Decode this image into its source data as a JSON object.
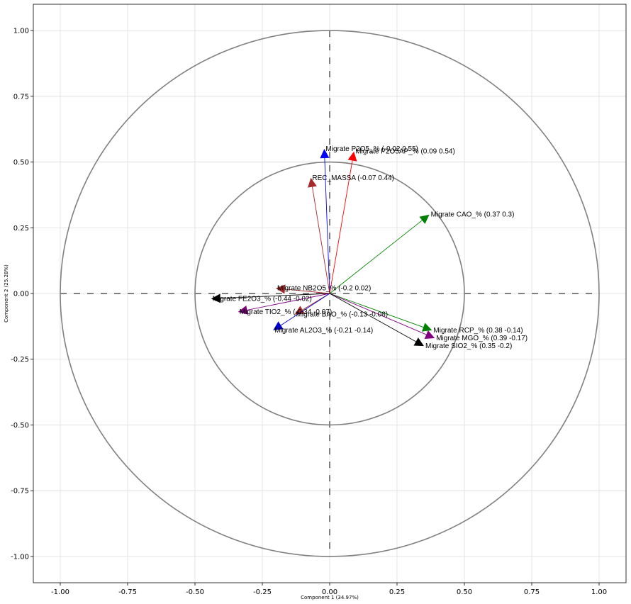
{
  "chart_data": {
    "type": "scatter",
    "subtype": "pca-correlation-circle",
    "title": "",
    "xlabel": "Component 1 (34.97%)",
    "ylabel": "Component 2 (25.28%)",
    "xlim": [
      -1.1,
      1.1
    ],
    "ylim": [
      -1.1,
      1.1
    ],
    "xticks": [
      "-1.00",
      "-0.75",
      "-0.50",
      "-0.25",
      "0.00",
      "0.25",
      "0.50",
      "0.75",
      "1.00"
    ],
    "yticks": [
      "-1.00",
      "-0.75",
      "-0.50",
      "-0.25",
      "0.00",
      "0.25",
      "0.50",
      "0.75",
      "1.00"
    ],
    "grid": true,
    "circles": [
      1.0,
      0.5
    ],
    "vectors": [
      {
        "name": "Migrate P2O5_% (-0.02 0.55)",
        "x": -0.02,
        "y": 0.55,
        "color": "#0000ff"
      },
      {
        "name": "Migrate P2O5AP_% (0.09 0.54)",
        "x": 0.09,
        "y": 0.54,
        "color": "#ff0000"
      },
      {
        "name": "REC_MASSA (-0.07 0.44)",
        "x": -0.07,
        "y": 0.44,
        "color": "#a52a2a"
      },
      {
        "name": "Migrate CAO_% (0.37 0.3)",
        "x": 0.37,
        "y": 0.3,
        "color": "#008000"
      },
      {
        "name": "Migrate NB2O5_% (-0.2 0.02)",
        "x": -0.2,
        "y": 0.02,
        "color": "#a52a2a"
      },
      {
        "name": "Migrate FE2O3_% (-0.44 -0.02)",
        "x": -0.44,
        "y": -0.02,
        "color": "#000000"
      },
      {
        "name": "Migrate TIO2_% (-0.34 -0.07)",
        "x": -0.34,
        "y": -0.07,
        "color": "#800080"
      },
      {
        "name": "Migrate BAO_% (-0.13 -0.08)",
        "x": -0.13,
        "y": -0.08,
        "color": "#a52a2a"
      },
      {
        "name": "Migrate AL2O3_% (-0.21 -0.14)",
        "x": -0.21,
        "y": -0.14,
        "color": "#0000cd"
      },
      {
        "name": "Migrate RCP_% (0.38 -0.14)",
        "x": 0.38,
        "y": -0.14,
        "color": "#008000"
      },
      {
        "name": "Migrate MGO_% (0.39 -0.17)",
        "x": 0.39,
        "y": -0.17,
        "color": "#800080"
      },
      {
        "name": "Migrate SIO2_% (0.35 -0.2)",
        "x": 0.35,
        "y": -0.2,
        "color": "#000000"
      }
    ]
  }
}
